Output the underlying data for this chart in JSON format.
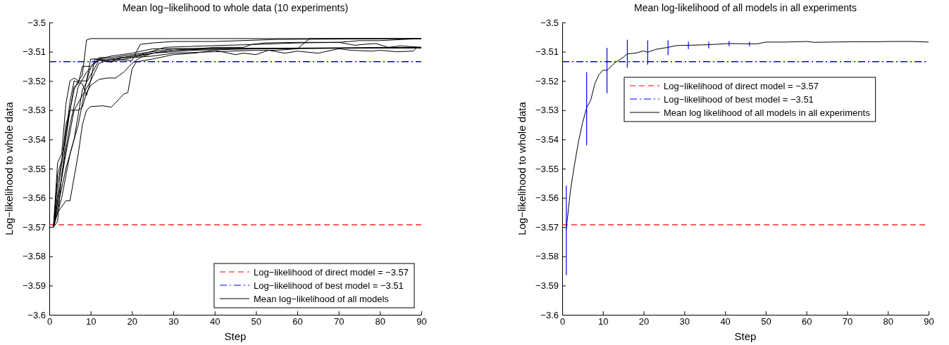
{
  "chart_data": [
    {
      "type": "line",
      "title": "Mean log−likelihood to whole data (10 experiments)",
      "xlabel": "Step",
      "ylabel": "Log−likelihood to whole data",
      "xlim": [
        0,
        90
      ],
      "xticks": [
        0,
        10,
        20,
        30,
        40,
        50,
        60,
        70,
        80,
        90
      ],
      "ylim": [
        -3.6,
        -3.5
      ],
      "yticks": [
        {
          "value": -3.6,
          "label": "−3.6"
        },
        {
          "value": -3.59,
          "label": "−3.59"
        },
        {
          "value": -3.58,
          "label": "−3.58"
        },
        {
          "value": -3.57,
          "label": "−3.57"
        },
        {
          "value": -3.56,
          "label": "−3.56"
        },
        {
          "value": -3.55,
          "label": "−3.55"
        },
        {
          "value": -3.54,
          "label": "−3.54"
        },
        {
          "value": -3.53,
          "label": "−3.53"
        },
        {
          "value": -3.52,
          "label": "−3.52"
        },
        {
          "value": -3.51,
          "label": "−3.51"
        },
        {
          "value": -3.5,
          "label": "−3.5"
        }
      ],
      "legend": "bottom right",
      "grid": false,
      "line_style": "solid",
      "ref_lines": [
        {
          "axis": "y",
          "value": -3.5692,
          "label": "Log−likelihood of direct model = −3.57",
          "color": "#ff0000",
          "line_style": "dashed"
        },
        {
          "axis": "y",
          "value": -3.5134,
          "label": "Log−likelihood of best model = −3.51",
          "color": "#0000ff",
          "line_style": "dashdot"
        }
      ],
      "series": [
        {
          "name": "Mean log−likelihood of all models",
          "color": "#000000",
          "x": [
            1,
            2,
            3,
            4,
            5,
            6,
            7,
            8,
            9,
            10,
            90
          ],
          "values": [
            -3.57,
            -3.555,
            -3.548,
            -3.535,
            -3.53,
            -3.523,
            -3.52,
            -3.518,
            -3.506,
            -3.5055,
            -3.5055
          ]
        },
        {
          "color": "#000000",
          "x": [
            1,
            2,
            3,
            4,
            5,
            6,
            7,
            8,
            9,
            10,
            12,
            15,
            20,
            30,
            90
          ],
          "values": [
            -3.57,
            -3.561,
            -3.553,
            -3.54,
            -3.53,
            -3.522,
            -3.521,
            -3.515,
            -3.515,
            -3.515,
            -3.512,
            -3.512,
            -3.511,
            -3.509,
            -3.5085
          ]
        },
        {
          "color": "#000000",
          "x": [
            1,
            2,
            4,
            5,
            7,
            8,
            9,
            10,
            13,
            15,
            17,
            18,
            19,
            20,
            21,
            25,
            30,
            35,
            40,
            45,
            47,
            50,
            53,
            57,
            60,
            65,
            70,
            73,
            78,
            80,
            84,
            88,
            89,
            90
          ],
          "values": [
            -3.57,
            -3.565,
            -3.561,
            -3.561,
            -3.545,
            -3.535,
            -3.53,
            -3.5288,
            -3.5285,
            -3.529,
            -3.526,
            -3.5245,
            -3.524,
            -3.516,
            -3.5135,
            -3.5125,
            -3.511,
            -3.5105,
            -3.5095,
            -3.511,
            -3.5105,
            -3.511,
            -3.5095,
            -3.5105,
            -3.5098,
            -3.5105,
            -3.509,
            -3.5095,
            -3.5098,
            -3.5095,
            -3.51,
            -3.5098,
            -3.5085,
            -3.5088
          ]
        },
        {
          "color": "#000000",
          "x": [
            1,
            2,
            3,
            4,
            5,
            6,
            7,
            9,
            10,
            12,
            15,
            20,
            22,
            25,
            30,
            40,
            55,
            90
          ],
          "values": [
            -3.57,
            -3.548,
            -3.545,
            -3.528,
            -3.52,
            -3.519,
            -3.52,
            -3.52,
            -3.5155,
            -3.5125,
            -3.5125,
            -3.513,
            -3.5075,
            -3.507,
            -3.5065,
            -3.5065,
            -3.5058,
            -3.5055
          ]
        },
        {
          "color": "#000000",
          "x": [
            1,
            3,
            4,
            5,
            6,
            8,
            9,
            10,
            11,
            13,
            15,
            17,
            20,
            25,
            35,
            50,
            90
          ],
          "values": [
            -3.57,
            -3.548,
            -3.538,
            -3.527,
            -3.52,
            -3.521,
            -3.525,
            -3.52,
            -3.5125,
            -3.513,
            -3.5135,
            -3.512,
            -3.512,
            -3.5105,
            -3.5095,
            -3.509,
            -3.5085
          ]
        },
        {
          "color": "#000000",
          "x": [
            1,
            2,
            3,
            4,
            5,
            6,
            7,
            8,
            9,
            10,
            12,
            14,
            16,
            18,
            20,
            22,
            25,
            30,
            40,
            90
          ],
          "values": [
            -3.57,
            -3.552,
            -3.547,
            -3.538,
            -3.53,
            -3.53,
            -3.53,
            -3.529,
            -3.524,
            -3.5215,
            -3.5195,
            -3.519,
            -3.519,
            -3.517,
            -3.514,
            -3.512,
            -3.5105,
            -3.5095,
            -3.509,
            -3.5087
          ]
        },
        {
          "color": "#000000",
          "x": [
            1,
            3,
            5,
            7,
            9,
            10,
            12,
            15,
            20,
            25,
            30,
            40,
            50,
            55,
            60,
            63,
            90
          ],
          "values": [
            -3.57,
            -3.56,
            -3.545,
            -3.535,
            -3.52,
            -3.5125,
            -3.5125,
            -3.5135,
            -3.512,
            -3.5115,
            -3.5105,
            -3.51,
            -3.5095,
            -3.5095,
            -3.509,
            -3.5055,
            -3.5055
          ]
        },
        {
          "color": "#000000",
          "x": [
            1,
            4,
            6,
            8,
            10,
            12,
            15,
            20,
            25,
            30,
            40,
            47,
            49,
            52,
            60,
            70,
            75,
            80,
            90
          ],
          "values": [
            -3.57,
            -3.545,
            -3.53,
            -3.525,
            -3.52,
            -3.514,
            -3.5125,
            -3.5115,
            -3.5105,
            -3.5095,
            -3.5085,
            -3.5085,
            -3.5075,
            -3.507,
            -3.5068,
            -3.5068,
            -3.5062,
            -3.5062,
            -3.5055
          ]
        },
        {
          "color": "#000000",
          "x": [
            1,
            2,
            3,
            5,
            7,
            9,
            12,
            15,
            20,
            25,
            90
          ],
          "values": [
            -3.57,
            -3.568,
            -3.552,
            -3.535,
            -3.522,
            -3.517,
            -3.5125,
            -3.5115,
            -3.5105,
            -3.509,
            -3.5087
          ]
        },
        {
          "color": "#000000",
          "x": [
            1,
            4,
            6,
            8,
            10,
            12,
            15,
            18,
            22,
            28,
            38,
            50,
            60,
            70,
            74,
            76,
            79,
            82,
            85,
            88,
            90
          ],
          "values": [
            -3.57,
            -3.55,
            -3.54,
            -3.523,
            -3.518,
            -3.513,
            -3.513,
            -3.512,
            -3.511,
            -3.5085,
            -3.508,
            -3.5075,
            -3.507,
            -3.5068,
            -3.5078,
            -3.5075,
            -3.5072,
            -3.5085,
            -3.508,
            -3.5083,
            -3.5085
          ]
        }
      ]
    },
    {
      "type": "line",
      "title": "Mean log-likelihood of all models in all experiments",
      "xlabel": "Step",
      "ylabel": "Log−likelihood to whole data",
      "xlim": [
        0,
        90
      ],
      "xticks": [
        0,
        10,
        20,
        30,
        40,
        50,
        60,
        70,
        80,
        90
      ],
      "ylim": [
        -3.6,
        -3.5
      ],
      "yticks": [
        {
          "value": -3.6,
          "label": "−3.6"
        },
        {
          "value": -3.59,
          "label": "−3.59"
        },
        {
          "value": -3.58,
          "label": "−3.58"
        },
        {
          "value": -3.57,
          "label": "−3.57"
        },
        {
          "value": -3.56,
          "label": "−3.56"
        },
        {
          "value": -3.55,
          "label": "−3.55"
        },
        {
          "value": -3.54,
          "label": "−3.54"
        },
        {
          "value": -3.53,
          "label": "−3.53"
        },
        {
          "value": -3.52,
          "label": "−3.52"
        },
        {
          "value": -3.51,
          "label": "−3.51"
        },
        {
          "value": -3.5,
          "label": "−3.5"
        }
      ],
      "legend": "top",
      "grid": false,
      "line_style": "solid",
      "ref_lines": [
        {
          "axis": "y",
          "value": -3.5692,
          "label": "Log−likelihood of direct model = −3.57",
          "color": "#ff0000",
          "line_style": "dashed"
        },
        {
          "axis": "y",
          "value": -3.5134,
          "label": "Log−likelihood of best model = −3.51",
          "color": "#0000ff",
          "line_style": "dashdot"
        }
      ],
      "series": [
        {
          "name": "Mean log likelihood of all models in all experiments",
          "color": "#000000",
          "x": [
            1,
            2,
            3,
            4,
            5,
            6,
            7,
            8,
            9,
            10,
            11,
            13,
            15,
            16,
            18,
            20,
            21,
            23,
            26,
            28,
            31,
            36,
            41,
            46,
            48,
            50,
            55,
            60,
            62,
            66,
            71,
            76,
            81,
            86,
            90
          ],
          "values": [
            -3.5707,
            -3.5577,
            -3.5488,
            -3.5408,
            -3.5343,
            -3.5292,
            -3.5266,
            -3.521,
            -3.5179,
            -3.5163,
            -3.5164,
            -3.5137,
            -3.5119,
            -3.5107,
            -3.5105,
            -3.5097,
            -3.5102,
            -3.5092,
            -3.5085,
            -3.5079,
            -3.5078,
            -3.5076,
            -3.5072,
            -3.5073,
            -3.5073,
            -3.5067,
            -3.5067,
            -3.5065,
            -3.5068,
            -3.5067,
            -3.5066,
            -3.5066,
            -3.5065,
            -3.5065,
            -3.5067
          ],
          "errors": [
            [
              -3.5864,
              -3.5558
            ],
            null,
            null,
            null,
            null,
            [
              -3.542,
              -3.517
            ],
            null,
            null,
            null,
            null,
            [
              -3.5242,
              -3.5087
            ],
            null,
            null,
            [
              -3.5155,
              -3.5059
            ],
            null,
            null,
            [
              -3.5144,
              -3.5061
            ],
            null,
            [
              -3.5111,
              -3.5061
            ],
            null,
            [
              -3.5091,
              -3.5066
            ],
            [
              -3.5089,
              -3.5066
            ],
            [
              -3.5081,
              -3.5064
            ],
            [
              -3.5081,
              -3.5066
            ],
            null,
            null,
            null,
            null,
            null,
            null,
            null,
            null,
            null,
            null,
            null
          ]
        }
      ]
    }
  ]
}
